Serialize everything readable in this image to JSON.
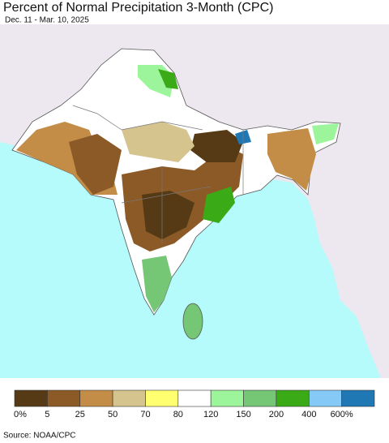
{
  "header": {
    "title": "Percent of Normal Precipitation 3-Month (CPC)",
    "subtitle": "Dec. 11 - Mar. 10, 2025"
  },
  "legend": {
    "colors": [
      "#553a15",
      "#8c5a26",
      "#c38d48",
      "#d5c48e",
      "#ffff70",
      "#ffffff",
      "#9cf59a",
      "#75c675",
      "#3aab17",
      "#85c9f7",
      "#1f78b4"
    ],
    "labels": [
      "0%",
      "5",
      "25",
      "50",
      "70",
      "80",
      "120",
      "150",
      "200",
      "400",
      "600%"
    ]
  },
  "footer": {
    "source": "Source: NOAA/CPC"
  }
}
